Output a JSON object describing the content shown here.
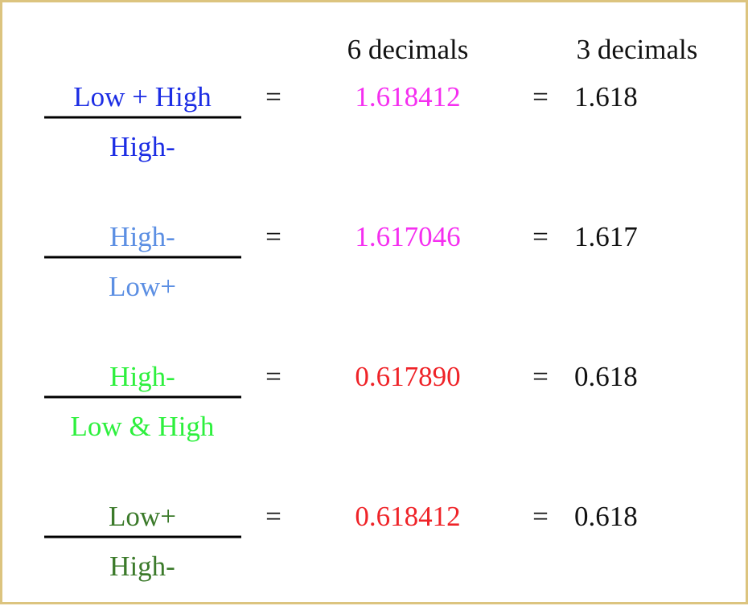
{
  "header": {
    "columns": [
      "6 decimals",
      "3 decimals"
    ]
  },
  "rows": [
    {
      "numerator": "Low + High",
      "denominator": "High-",
      "color": "#1c2de4",
      "equals": "=",
      "six_decimals": "1.618412",
      "value_color": "#f52ff0",
      "equals_2": "=",
      "three_decimals": "1.618"
    },
    {
      "numerator": "High-",
      "denominator": "Low+",
      "color": "#5c8fe3",
      "equals": "=",
      "six_decimals": "1.617046",
      "value_color": "#f52ff0",
      "equals_2": "=",
      "three_decimals": "1.617"
    },
    {
      "numerator": "High-",
      "denominator": "Low & High",
      "color": "#2df03d",
      "equals": "=",
      "six_decimals": "0.617890",
      "value_color": "#ef2328",
      "equals_2": "=",
      "three_decimals": "0.618"
    },
    {
      "numerator": "Low+",
      "denominator": "High-",
      "color": "#3b7a2a",
      "equals": "=",
      "six_decimals": "0.618412",
      "value_color": "#ef2328",
      "equals_2": "=",
      "three_decimals": "0.618"
    }
  ]
}
